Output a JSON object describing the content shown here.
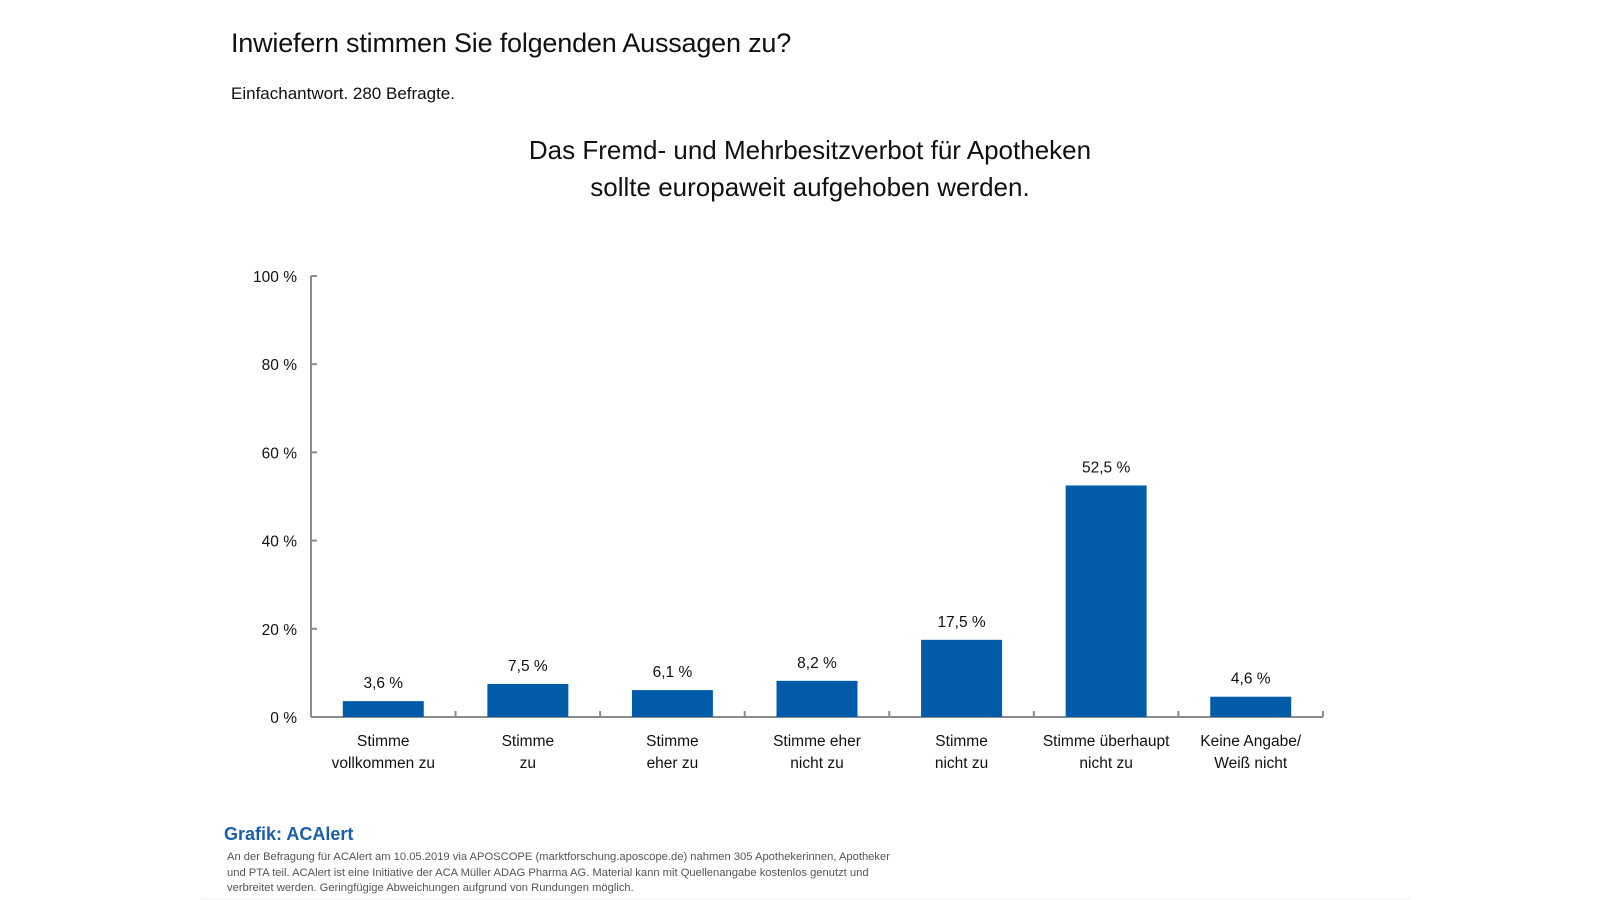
{
  "header": {
    "title": "Inwiefern stimmen Sie folgenden Aussagen zu?",
    "subtitle": "Einfachantwort. 280 Befragte."
  },
  "chart_data": {
    "type": "bar",
    "title_lines": [
      "Das Fremd- und Mehrbesitzverbot für Apotheken",
      "sollte europaweit aufgehoben werden."
    ],
    "xlabel": "",
    "ylabel": "",
    "ylim": [
      0,
      100
    ],
    "y_ticks": [
      0,
      20,
      40,
      60,
      80,
      100
    ],
    "y_tick_labels": [
      "0 %",
      "20 %",
      "40 %",
      "60 %",
      "80 %",
      "100 %"
    ],
    "grid": false,
    "legend": "none",
    "bar_color": "#005ca9",
    "categories": [
      [
        "Stimme",
        "vollkommen zu"
      ],
      [
        "Stimme",
        "zu"
      ],
      [
        "Stimme",
        "eher zu"
      ],
      [
        "Stimme eher",
        "nicht zu"
      ],
      [
        "Stimme",
        "nicht zu"
      ],
      [
        "Stimme überhaupt",
        "nicht zu"
      ],
      [
        "Keine Angabe/",
        "Weiß nicht"
      ]
    ],
    "values": [
      3.6,
      7.5,
      6.1,
      8.2,
      17.5,
      52.5,
      4.6
    ],
    "value_labels": [
      "3,6 %",
      "7,5 %",
      "6,1 %",
      "8,2 %",
      "17,5 %",
      "52,5 %",
      "4,6 %"
    ]
  },
  "footer": {
    "source_label": "Grafik: ACAlert",
    "note_lines": [
      "An der Befragung für ACAlert am 10.05.2019 via APOSCOPE (marktforschung.aposcope.de) nahmen 305 Apothekerinnen, Apotheker",
      "und PTA teil. ACAlert ist eine Initiative der ACA Müller ADAG Pharma AG. Material kann mit Quellenangabe kostenlos genutzt und",
      "verbreitet werden. Geringfügige Abweichungen aufgrund von Rundungen möglich."
    ]
  }
}
